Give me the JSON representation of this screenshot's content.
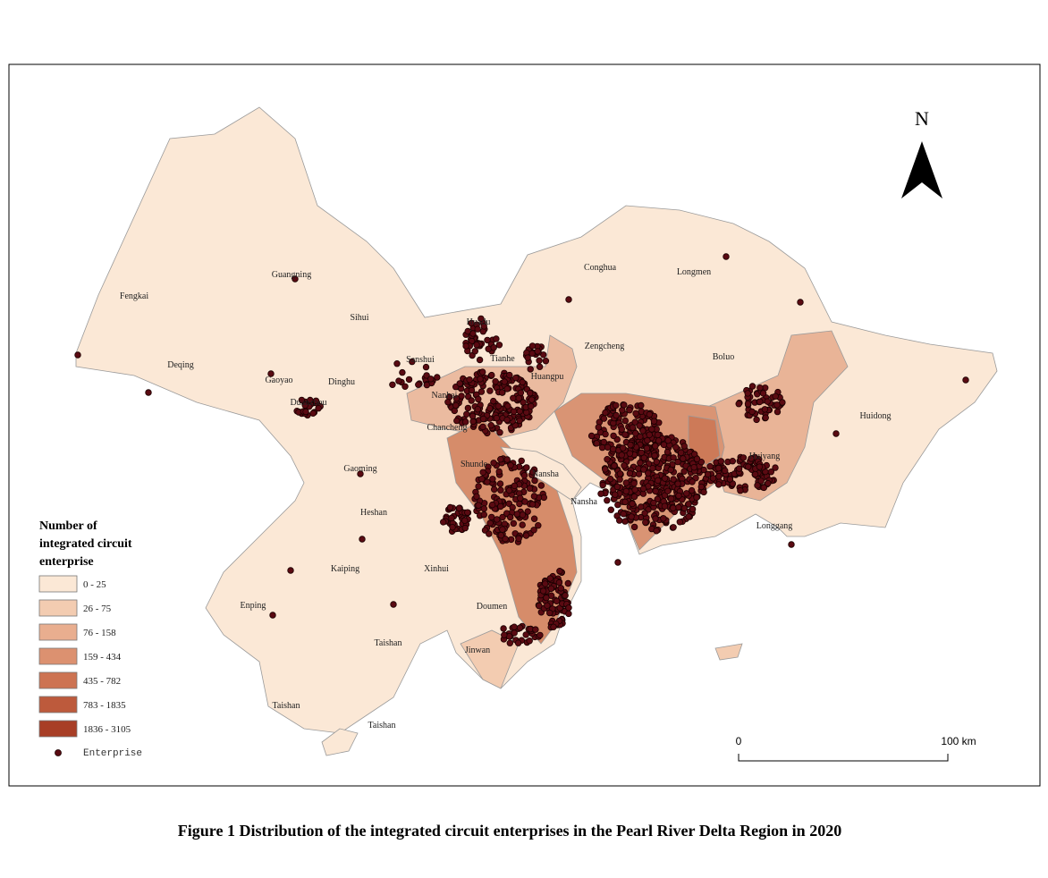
{
  "map": {
    "north": "N",
    "labels": [
      "Fengkai",
      "Guangning",
      "Sihui",
      "Deqing",
      "Gaoyao",
      "Dinghu",
      "Duanzhou",
      "Sanshui",
      "Huadu",
      "Tianhe",
      "Huangpu",
      "Nanhai",
      "Chancheng",
      "Shunde",
      "Nansha",
      "Nansha",
      "Conghua",
      "Zengcheng",
      "Longmen",
      "Boluo",
      "Huiyang",
      "Huidong",
      "Longgang",
      "Gaoming",
      "Heshan",
      "Kaiping",
      "Xinhui",
      "Enping",
      "Taishan",
      "Doumen",
      "Jinwan",
      "Taishan",
      "Taishan"
    ],
    "legend": {
      "title": [
        "Number of",
        "integrated circuit",
        "enterprise"
      ],
      "classes": [
        {
          "label": "0 - 25",
          "color": "#fbe8d6"
        },
        {
          "label": "26 - 75",
          "color": "#f3ccb1"
        },
        {
          "label": "76 - 158",
          "color": "#e9ae8f"
        },
        {
          "label": "159 - 434",
          "color": "#dc9170"
        },
        {
          "label": "435 - 782",
          "color": "#cd7352"
        },
        {
          "label": "783 - 1835",
          "color": "#bd5a3c"
        },
        {
          "label": "1836 - 3105",
          "color": "#a83e26"
        }
      ],
      "point_label": "Enterprise"
    },
    "scale": {
      "start": "0",
      "end": "100 km"
    }
  },
  "caption": "Figure 1  Distribution of the integrated circuit enterprises in the Pearl River Delta Region in 2020"
}
